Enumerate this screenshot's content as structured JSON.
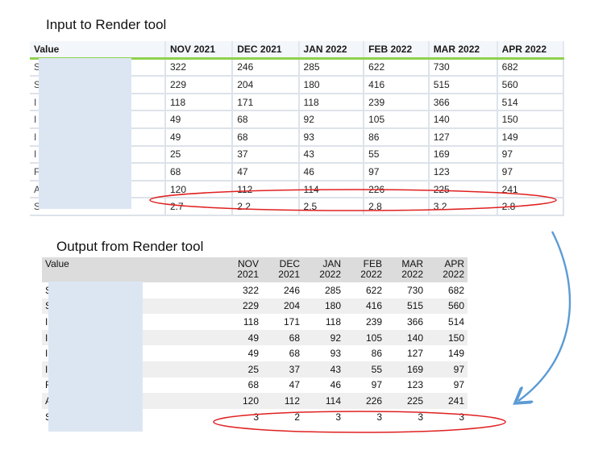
{
  "captions": {
    "input": "Input to Render tool",
    "output": "Output from Render tool"
  },
  "input_table": {
    "value_header": "Value",
    "months": [
      "NOV 2021",
      "DEC 2021",
      "JAN 2022",
      "FEB 2022",
      "MAR 2022",
      "APR 2022"
    ],
    "rows": [
      {
        "label": "S",
        "values": [
          "322",
          "246",
          "285",
          "622",
          "730",
          "682"
        ]
      },
      {
        "label": "S",
        "values": [
          "229",
          "204",
          "180",
          "416",
          "515",
          "560"
        ]
      },
      {
        "label": "I",
        "values": [
          "118",
          "171",
          "118",
          "239",
          "366",
          "514"
        ]
      },
      {
        "label": "I",
        "values": [
          "49",
          "68",
          "92",
          "105",
          "140",
          "150"
        ]
      },
      {
        "label": "I",
        "values": [
          "49",
          "68",
          "93",
          "86",
          "127",
          "149"
        ]
      },
      {
        "label": "I",
        "values": [
          "25",
          "37",
          "43",
          "55",
          "169",
          "97"
        ]
      },
      {
        "label": "F",
        "values": [
          "68",
          "47",
          "46",
          "97",
          "123",
          "97"
        ]
      },
      {
        "label": "A",
        "values": [
          "120",
          "112",
          "114",
          "226",
          "225",
          "241"
        ]
      },
      {
        "label": "S",
        "values": [
          "2.7",
          "2.2",
          "2.5",
          "2.8",
          "3.2",
          "2.8"
        ]
      }
    ]
  },
  "output_table": {
    "value_header": "Value",
    "months": [
      {
        "m": "NOV",
        "y": "2021"
      },
      {
        "m": "DEC",
        "y": "2021"
      },
      {
        "m": "JAN",
        "y": "2022"
      },
      {
        "m": "FEB",
        "y": "2022"
      },
      {
        "m": "MAR",
        "y": "2022"
      },
      {
        "m": "APR",
        "y": "2022"
      }
    ],
    "rows": [
      {
        "label": "S",
        "values": [
          "322",
          "246",
          "285",
          "622",
          "730",
          "682"
        ]
      },
      {
        "label": "S",
        "values": [
          "229",
          "204",
          "180",
          "416",
          "515",
          "560"
        ]
      },
      {
        "label": "I",
        "values": [
          "118",
          "171",
          "118",
          "239",
          "366",
          "514"
        ]
      },
      {
        "label": "I",
        "values": [
          "49",
          "68",
          "92",
          "105",
          "140",
          "150"
        ]
      },
      {
        "label": "I",
        "values": [
          "49",
          "68",
          "93",
          "86",
          "127",
          "149"
        ]
      },
      {
        "label": "I",
        "values": [
          "25",
          "37",
          "43",
          "55",
          "169",
          "97"
        ]
      },
      {
        "label": "F",
        "values": [
          "68",
          "47",
          "46",
          "97",
          "123",
          "97"
        ]
      },
      {
        "label": "A",
        "values": [
          "120",
          "112",
          "114",
          "226",
          "225",
          "241"
        ]
      },
      {
        "label": "S",
        "values": [
          "3",
          "2",
          "3",
          "3",
          "3",
          "3"
        ]
      }
    ]
  },
  "colors": {
    "highlight_ellipse": "#e02020",
    "arrow": "#5b9bd5",
    "redaction": "#dce6f3",
    "input_header_underline": "#8fd14f"
  }
}
